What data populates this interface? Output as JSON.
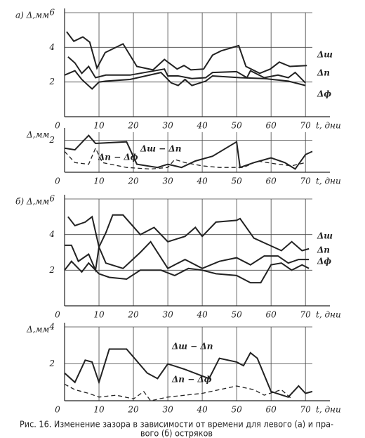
{
  "chart_data": [
    {
      "type": "line",
      "ylabel": "а) Δ,мм",
      "xlabel": "t, дни",
      "xlim": [
        0,
        72
      ],
      "ylim": [
        0,
        6
      ],
      "xticks": [
        0,
        10,
        20,
        30,
        40,
        50,
        60,
        70
      ],
      "yticks": [
        2,
        4,
        6
      ],
      "grid": true,
      "series": [
        {
          "name": "Δш",
          "color": "#222222",
          "style": "solid",
          "x": [
            0.6,
            2.7,
            5.3,
            7.3,
            9.4,
            11.8,
            17,
            21,
            25.7,
            29,
            32.7,
            34.7,
            36.7,
            40.4,
            43,
            45.5,
            50.6,
            52.7,
            56.7,
            59.8,
            62.4,
            65.5,
            70.4
          ],
          "values": [
            4.9,
            4.35,
            4.6,
            4.3,
            2.8,
            3.7,
            4.2,
            2.9,
            2.7,
            3.3,
            2.75,
            2.95,
            2.7,
            2.75,
            3.55,
            3.8,
            4.1,
            2.9,
            2.5,
            2.75,
            3.15,
            2.9,
            2.95
          ]
        },
        {
          "name": "Δп",
          "color": "#222222",
          "style": "solid",
          "x": [
            1,
            3,
            5,
            7,
            9,
            12,
            19,
            29,
            30,
            33,
            37,
            41,
            43,
            50,
            53,
            54,
            58,
            62,
            65,
            67,
            70
          ],
          "values": [
            3.45,
            3.1,
            2.5,
            2.9,
            2.25,
            2.4,
            2.4,
            2.75,
            2.35,
            2.35,
            2.2,
            2.25,
            2.55,
            2.6,
            2.25,
            2.65,
            2.25,
            2.4,
            2.25,
            2.55,
            1.95
          ]
        },
        {
          "name": "Δф",
          "color": "#222222",
          "style": "solid",
          "x": [
            0,
            3,
            5,
            8,
            10,
            12,
            19,
            28,
            31,
            33,
            35,
            37,
            41,
            43,
            51,
            58,
            65,
            70
          ],
          "values": [
            2.4,
            2.65,
            2.15,
            1.6,
            2.0,
            2.05,
            2.15,
            2.55,
            1.95,
            1.8,
            2.15,
            1.8,
            2.05,
            2.35,
            2.25,
            2.2,
            2.05,
            1.8
          ]
        }
      ]
    },
    {
      "type": "line",
      "ylabel": "Δ,мм",
      "xlabel": "t, дни",
      "xlim": [
        0,
        72
      ],
      "ylim": [
        0,
        2.5
      ],
      "xticks": [
        0,
        10,
        20,
        30,
        40,
        50,
        60,
        70
      ],
      "yticks": [
        2
      ],
      "grid": true,
      "series": [
        {
          "name": "Δш − Δп",
          "color": "#222222",
          "style": "solid",
          "x": [
            0,
            3,
            7,
            9,
            18,
            21,
            27,
            30,
            34,
            38,
            43,
            50,
            51,
            55,
            60,
            64,
            67,
            70,
            72
          ],
          "values": [
            1.5,
            1.4,
            2.3,
            1.8,
            1.9,
            0.5,
            0.3,
            0.5,
            0.3,
            0.7,
            1.0,
            1.9,
            0.3,
            0.6,
            0.9,
            0.6,
            0.2,
            1.1,
            1.3
          ]
        },
        {
          "name": "Δп − Δф",
          "color": "#222222",
          "style": "dashed",
          "x": [
            0,
            3,
            7,
            9,
            11,
            18,
            25,
            30,
            32,
            35,
            40,
            45,
            52,
            56,
            62,
            66,
            70
          ],
          "values": [
            1.3,
            0.6,
            0.5,
            1.5,
            0.6,
            0.3,
            0.2,
            0.3,
            0.8,
            0.6,
            0.4,
            0.3,
            0.3,
            0.7,
            0.5,
            0.4,
            0.6
          ]
        }
      ]
    },
    {
      "type": "line",
      "ylabel": "б) Δ,мм",
      "xlabel": "t, дни",
      "xlim": [
        0,
        72
      ],
      "ylim": [
        0,
        6
      ],
      "xticks": [
        0,
        10,
        20,
        30,
        40,
        50,
        60,
        70
      ],
      "yticks": [
        2,
        4,
        6
      ],
      "grid": true,
      "series": [
        {
          "name": "Δш",
          "color": "#222222",
          "style": "solid",
          "x": [
            1,
            3,
            6,
            8,
            10,
            12,
            14,
            17,
            22,
            26,
            30,
            35,
            38,
            40,
            44,
            50,
            51,
            55,
            63,
            66,
            69,
            71
          ],
          "values": [
            5.0,
            4.5,
            4.7,
            5.0,
            3.3,
            4.1,
            5.1,
            5.1,
            4.0,
            4.4,
            3.6,
            3.9,
            4.4,
            3.9,
            4.7,
            4.8,
            4.9,
            3.8,
            3.1,
            3.6,
            3.1,
            3.2
          ]
        },
        {
          "name": "Δп",
          "color": "#222222",
          "style": "solid",
          "x": [
            0,
            2,
            4,
            7,
            9,
            10,
            12,
            17,
            22,
            25,
            30,
            35,
            40,
            45,
            50,
            54,
            58,
            62,
            65,
            68,
            71
          ],
          "values": [
            3.4,
            3.4,
            2.5,
            2.9,
            2.0,
            3.3,
            2.4,
            2.1,
            3.0,
            3.6,
            2.1,
            2.6,
            2.1,
            2.5,
            2.7,
            2.3,
            2.8,
            2.8,
            2.4,
            2.6,
            2.6
          ]
        },
        {
          "name": "Δф",
          "color": "#222222",
          "style": "solid",
          "x": [
            0,
            2,
            5,
            7,
            10,
            13,
            18,
            22,
            28,
            32,
            36,
            40,
            44,
            50,
            54,
            57,
            60,
            63,
            66,
            69,
            71
          ],
          "values": [
            2.0,
            2.5,
            1.9,
            2.4,
            1.8,
            1.6,
            1.5,
            2.0,
            2.0,
            1.7,
            2.1,
            2.0,
            1.8,
            1.7,
            1.3,
            1.3,
            2.3,
            2.4,
            2.0,
            2.3,
            2.1
          ]
        }
      ]
    },
    {
      "type": "line",
      "ylabel": "Δ,мм",
      "xlabel": "t, дни",
      "xlim": [
        0,
        72
      ],
      "ylim": [
        0,
        4
      ],
      "xticks": [
        0,
        10,
        20,
        30,
        40,
        50,
        60,
        70
      ],
      "yticks": [
        2,
        4
      ],
      "grid": true,
      "series": [
        {
          "name": "Δш − Δп",
          "color": "#222222",
          "style": "solid",
          "x": [
            0,
            3,
            6,
            8,
            10,
            13,
            18,
            24,
            27,
            30,
            35,
            42,
            45,
            50,
            52,
            54,
            56,
            60,
            65,
            68,
            70,
            72
          ],
          "values": [
            1.5,
            1.0,
            2.2,
            2.1,
            1.0,
            2.8,
            2.8,
            1.5,
            1.2,
            2.0,
            1.7,
            1.2,
            2.3,
            2.1,
            1.9,
            2.6,
            2.3,
            0.5,
            0.2,
            0.8,
            0.4,
            0.5
          ]
        },
        {
          "name": "Δп − Δф",
          "color": "#222222",
          "style": "dashed",
          "x": [
            0,
            3,
            7,
            10,
            15,
            20,
            23,
            25,
            30,
            40,
            50,
            55,
            58,
            63,
            66
          ],
          "values": [
            0.9,
            0.6,
            0.4,
            0.2,
            0.3,
            0.1,
            0.5,
            0.0,
            0.2,
            0.4,
            0.8,
            0.6,
            0.3,
            0.6,
            0.1
          ]
        }
      ]
    }
  ],
  "caption": [
    "Рис. 16. Изменение зазора в зависимости от времени для левого (а) и пра-",
    "вого (б) остряков"
  ]
}
